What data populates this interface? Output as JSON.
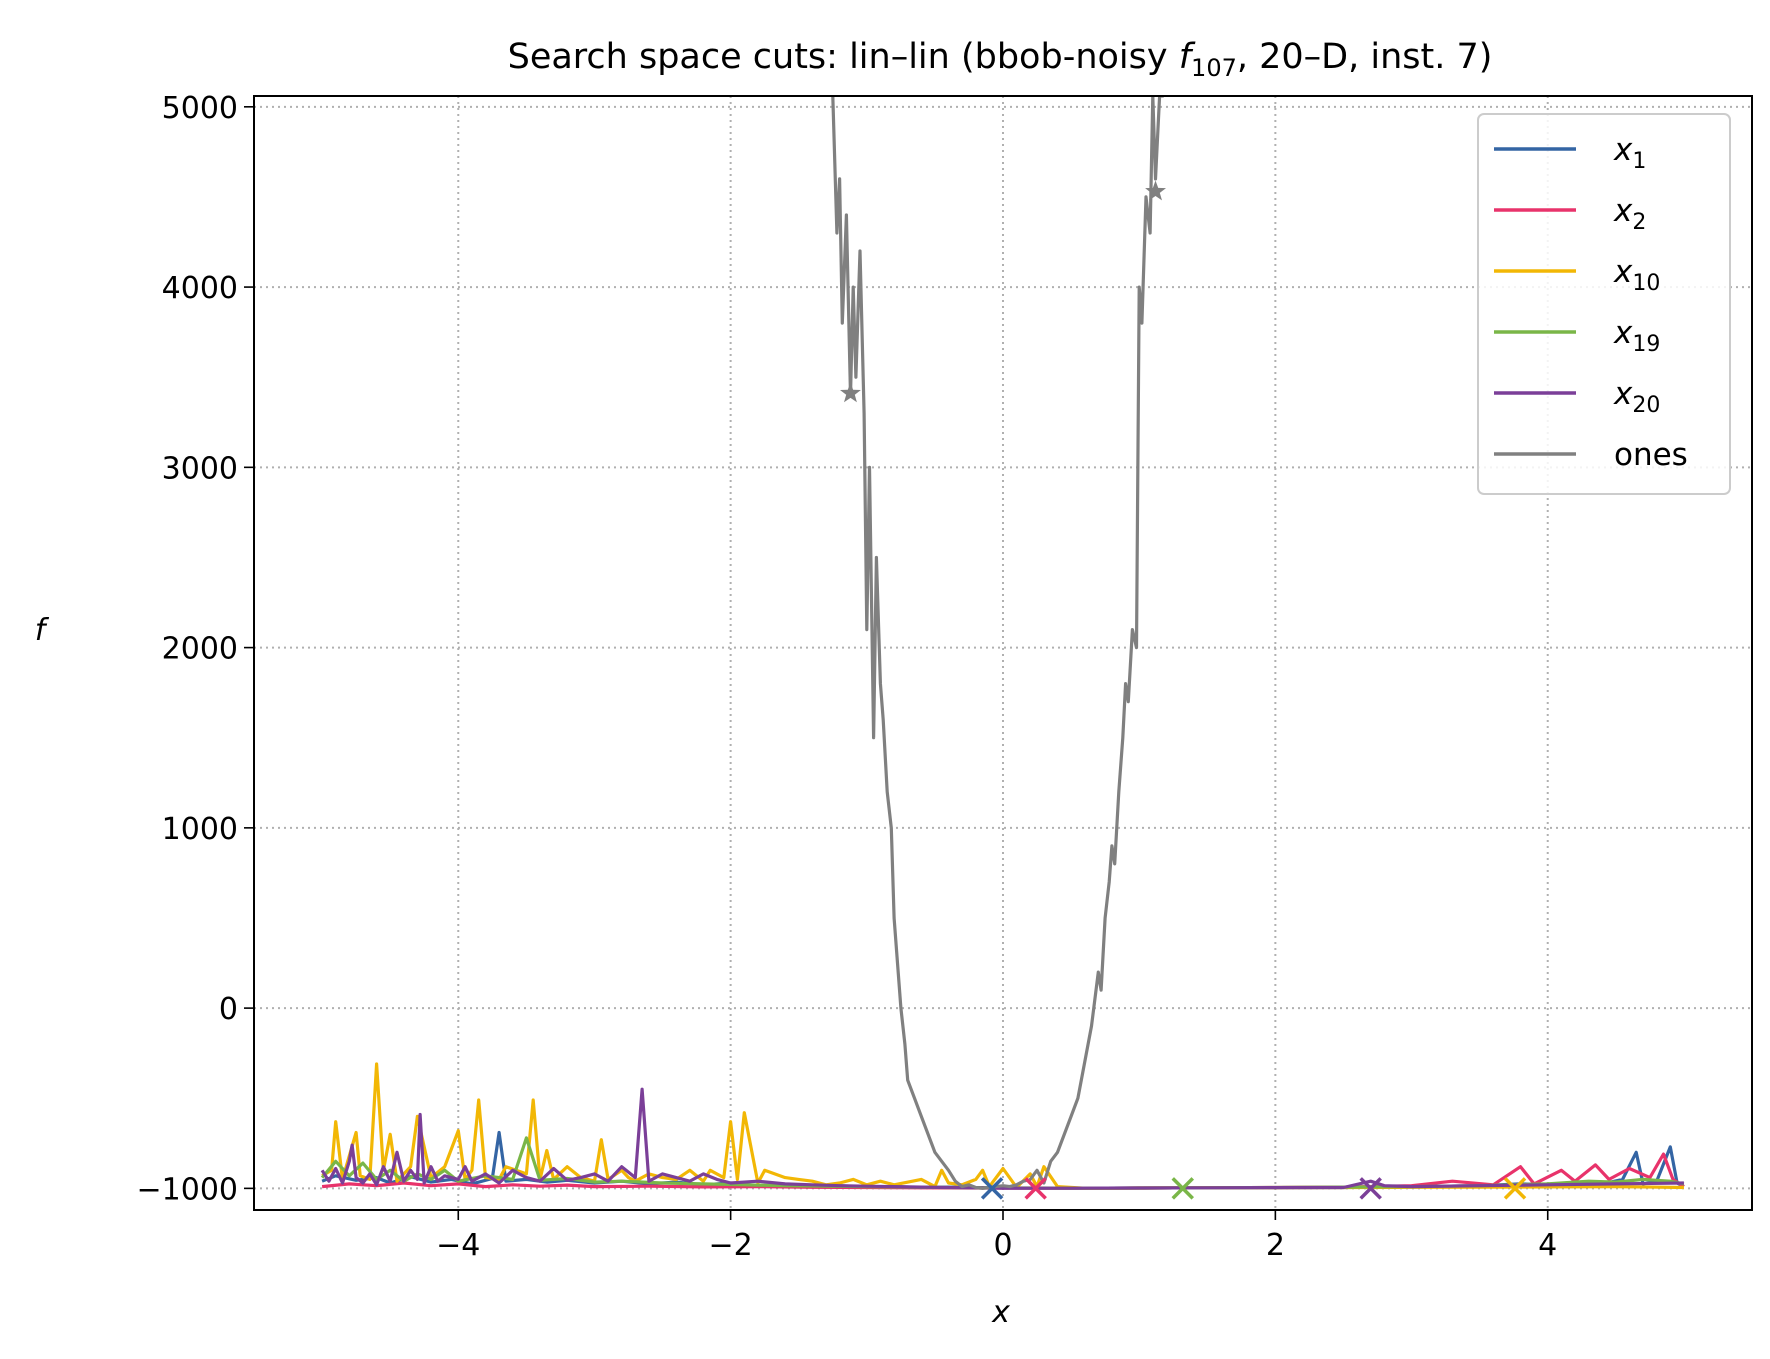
{
  "chart_data": {
    "type": "line",
    "title": {
      "prefix": "Search space cuts: lin–lin (bbob-noisy ",
      "func_symbol": "f",
      "func_sub": "107",
      "suffix": ", 20–D, inst. 7)"
    },
    "xlabel": "x",
    "ylabel": "f",
    "xlim": [
      -5.5,
      5.5
    ],
    "ylim": [
      -1120,
      5060
    ],
    "xticks": [
      {
        "value": -4,
        "label": "−4"
      },
      {
        "value": -2,
        "label": "−2"
      },
      {
        "value": 0,
        "label": "0"
      },
      {
        "value": 2,
        "label": "2"
      },
      {
        "value": 4,
        "label": "4"
      }
    ],
    "yticks": [
      {
        "value": -1000,
        "label": "−1000"
      },
      {
        "value": 0,
        "label": "0"
      },
      {
        "value": 1000,
        "label": "1000"
      },
      {
        "value": 2000,
        "label": "2000"
      },
      {
        "value": 3000,
        "label": "3000"
      },
      {
        "value": 4000,
        "label": "4000"
      },
      {
        "value": 5000,
        "label": "5000"
      }
    ],
    "grid": true,
    "legend_position": "top-right",
    "series": [
      {
        "name": "x",
        "sub": "1",
        "color": "#3465a4",
        "x": [
          -5.0,
          -4.9,
          -4.75,
          -4.6,
          -4.5,
          -4.35,
          -4.2,
          -4.05,
          -3.9,
          -3.75,
          -3.7,
          -3.65,
          -3.5,
          -3.35,
          -3.2,
          -3.0,
          -2.8,
          -2.6,
          -2.4,
          -2.2,
          -2.0,
          -1.8,
          -1.6,
          -1.4,
          -1.2,
          -1.0,
          -0.8,
          -0.6,
          -0.4,
          -0.2,
          0.0,
          0.5,
          1.0,
          1.5,
          2.0,
          2.5,
          3.0,
          3.5,
          3.8,
          4.0,
          4.2,
          4.4,
          4.55,
          4.65,
          4.7,
          4.8,
          4.9,
          4.95,
          5.0
        ],
        "y": [
          -960,
          -930,
          -955,
          -940,
          -970,
          -935,
          -965,
          -950,
          -975,
          -945,
          -690,
          -960,
          -950,
          -965,
          -955,
          -970,
          -960,
          -975,
          -965,
          -980,
          -970,
          -985,
          -980,
          -990,
          -985,
          -992,
          -990,
          -995,
          -993,
          -996,
          -998,
          -999,
          -998,
          -997,
          -996,
          -995,
          -990,
          -985,
          -975,
          -980,
          -965,
          -975,
          -950,
          -800,
          -975,
          -960,
          -770,
          -970,
          -990
        ]
      },
      {
        "name": "x",
        "sub": "2",
        "color": "#e8336b",
        "x": [
          -5.0,
          -4.8,
          -4.6,
          -4.4,
          -4.2,
          -4.0,
          -3.8,
          -3.6,
          -3.4,
          -3.2,
          -3.0,
          -2.6,
          -2.2,
          -1.8,
          -1.4,
          -1.0,
          -0.6,
          -0.2,
          0.2,
          0.6,
          1.0,
          1.5,
          2.0,
          2.5,
          3.0,
          3.3,
          3.6,
          3.8,
          3.9,
          4.1,
          4.2,
          4.35,
          4.45,
          4.6,
          4.75,
          4.85,
          4.92,
          5.0
        ],
        "y": [
          -990,
          -975,
          -985,
          -970,
          -985,
          -975,
          -990,
          -980,
          -988,
          -982,
          -990,
          -988,
          -992,
          -990,
          -994,
          -995,
          -997,
          -998,
          -999,
          -999,
          -998,
          -997,
          -995,
          -993,
          -985,
          -960,
          -980,
          -880,
          -975,
          -900,
          -960,
          -870,
          -950,
          -890,
          -940,
          -810,
          -950,
          -990
        ]
      },
      {
        "name": "x",
        "sub": "10",
        "color": "#f2b705",
        "x": [
          -5.0,
          -4.93,
          -4.9,
          -4.85,
          -4.75,
          -4.72,
          -4.65,
          -4.6,
          -4.55,
          -4.5,
          -4.45,
          -4.35,
          -4.3,
          -4.2,
          -4.1,
          -4.0,
          -3.95,
          -3.9,
          -3.85,
          -3.8,
          -3.7,
          -3.65,
          -3.5,
          -3.45,
          -3.4,
          -3.35,
          -3.3,
          -3.2,
          -3.1,
          -3.0,
          -2.95,
          -2.9,
          -2.8,
          -2.75,
          -2.7,
          -2.6,
          -2.5,
          -2.4,
          -2.3,
          -2.2,
          -2.15,
          -2.05,
          -2.0,
          -1.95,
          -1.9,
          -1.8,
          -1.75,
          -1.6,
          -1.5,
          -1.4,
          -1.3,
          -1.2,
          -1.1,
          -1.0,
          -0.9,
          -0.8,
          -0.6,
          -0.5,
          -0.45,
          -0.4,
          -0.3,
          -0.2,
          -0.15,
          -0.1,
          0.0,
          0.1,
          0.2,
          0.25,
          0.3,
          0.4,
          0.6,
          0.8,
          1.0,
          1.5,
          2.0,
          2.5,
          3.0,
          3.5,
          4.0,
          4.5,
          5.0
        ],
        "y": [
          -930,
          -900,
          -630,
          -950,
          -690,
          -930,
          -950,
          -310,
          -900,
          -700,
          -960,
          -880,
          -600,
          -940,
          -880,
          -680,
          -950,
          -900,
          -510,
          -940,
          -950,
          -880,
          -920,
          -510,
          -950,
          -790,
          -950,
          -880,
          -940,
          -960,
          -730,
          -950,
          -900,
          -940,
          -960,
          -920,
          -940,
          -950,
          -900,
          -960,
          -900,
          -940,
          -630,
          -950,
          -580,
          -970,
          -900,
          -940,
          -950,
          -960,
          -980,
          -970,
          -950,
          -980,
          -960,
          -980,
          -950,
          -990,
          -900,
          -970,
          -980,
          -950,
          -900,
          -990,
          -890,
          -995,
          -920,
          -990,
          -880,
          -990,
          -999,
          -999,
          -998,
          -997,
          -996,
          -995,
          -994,
          -993,
          -992,
          -990,
          -995
        ]
      },
      {
        "name": "x",
        "sub": "19",
        "color": "#7ab648",
        "x": [
          -5.0,
          -4.9,
          -4.8,
          -4.7,
          -4.6,
          -4.5,
          -4.4,
          -4.3,
          -4.2,
          -4.1,
          -4.0,
          -3.8,
          -3.6,
          -3.5,
          -3.4,
          -3.2,
          -3.0,
          -2.8,
          -2.5,
          -2.2,
          -1.9,
          -1.6,
          -1.3,
          -1.0,
          -0.7,
          -0.4,
          -0.1,
          0.2,
          0.6,
          1.0,
          1.5,
          2.0,
          2.5,
          3.0,
          3.5,
          4.0,
          4.3,
          4.5,
          4.7,
          4.9,
          5.0
        ],
        "y": [
          -940,
          -850,
          -930,
          -860,
          -950,
          -900,
          -960,
          -920,
          -950,
          -900,
          -960,
          -930,
          -950,
          -720,
          -955,
          -945,
          -965,
          -960,
          -970,
          -975,
          -980,
          -985,
          -988,
          -990,
          -993,
          -995,
          -997,
          -998,
          -999,
          -998,
          -997,
          -995,
          -993,
          -990,
          -985,
          -975,
          -960,
          -965,
          -950,
          -960,
          -975
        ]
      },
      {
        "name": "x",
        "sub": "20",
        "color": "#7b3f98",
        "x": [
          -5.0,
          -4.95,
          -4.9,
          -4.85,
          -4.8,
          -4.78,
          -4.75,
          -4.7,
          -4.65,
          -4.6,
          -4.55,
          -4.5,
          -4.45,
          -4.4,
          -4.35,
          -4.3,
          -4.28,
          -4.25,
          -4.2,
          -4.15,
          -4.1,
          -4.0,
          -3.95,
          -3.9,
          -3.8,
          -3.7,
          -3.6,
          -3.5,
          -3.4,
          -3.3,
          -3.2,
          -3.1,
          -3.0,
          -2.9,
          -2.8,
          -2.7,
          -2.65,
          -2.6,
          -2.5,
          -2.4,
          -2.3,
          -2.2,
          -2.1,
          -2.0,
          -1.8,
          -1.6,
          -1.4,
          -1.2,
          -1.0,
          -0.8,
          -0.6,
          -0.4,
          -0.2,
          0.0,
          0.5,
          1.0,
          1.5,
          2.0,
          2.5,
          2.7,
          2.8,
          3.0,
          3.5,
          4.0,
          4.5,
          5.0
        ],
        "y": [
          -900,
          -960,
          -890,
          -970,
          -850,
          -760,
          -940,
          -970,
          -920,
          -980,
          -880,
          -960,
          -800,
          -960,
          -900,
          -950,
          -590,
          -970,
          -880,
          -960,
          -930,
          -950,
          -880,
          -960,
          -920,
          -970,
          -900,
          -940,
          -960,
          -890,
          -955,
          -940,
          -920,
          -960,
          -880,
          -940,
          -450,
          -960,
          -920,
          -940,
          -960,
          -920,
          -950,
          -970,
          -960,
          -975,
          -980,
          -985,
          -988,
          -990,
          -993,
          -995,
          -997,
          -999,
          -999,
          -998,
          -997,
          -996,
          -995,
          -960,
          -985,
          -990,
          -985,
          -980,
          -975,
          -970
        ]
      },
      {
        "name": "ones",
        "sub": "",
        "color": "#808080",
        "x": [
          -1.25,
          -1.22,
          -1.2,
          -1.18,
          -1.15,
          -1.12,
          -1.1,
          -1.08,
          -1.05,
          -1.02,
          -1.0,
          -0.98,
          -0.95,
          -0.93,
          -0.9,
          -0.88,
          -0.85,
          -0.82,
          -0.8,
          -0.75,
          -0.72,
          -0.7,
          -0.65,
          -0.6,
          -0.55,
          -0.5,
          -0.45,
          -0.4,
          -0.35,
          -0.3,
          -0.25,
          -0.2,
          -0.15,
          -0.1,
          -0.05,
          0.0,
          0.05,
          0.1,
          0.15,
          0.2,
          0.25,
          0.3,
          0.35,
          0.4,
          0.45,
          0.5,
          0.55,
          0.6,
          0.65,
          0.7,
          0.72,
          0.75,
          0.78,
          0.8,
          0.82,
          0.85,
          0.88,
          0.9,
          0.92,
          0.95,
          0.98,
          1.0,
          1.02,
          1.05,
          1.08,
          1.1,
          1.12,
          1.15,
          1.18
        ],
        "y": [
          5060,
          4300,
          4600,
          3800,
          4400,
          3400,
          4000,
          3500,
          4200,
          3300,
          2100,
          3000,
          1500,
          2500,
          1800,
          1600,
          1200,
          1000,
          500,
          0,
          -200,
          -400,
          -500,
          -600,
          -700,
          -800,
          -850,
          -900,
          -960,
          -990,
          -980,
          -995,
          -1000,
          -995,
          -990,
          -985,
          -990,
          -980,
          -960,
          -950,
          -900,
          -970,
          -850,
          -800,
          -700,
          -600,
          -500,
          -300,
          -100,
          200,
          100,
          500,
          700,
          900,
          800,
          1200,
          1500,
          1800,
          1700,
          2100,
          2000,
          4000,
          3800,
          4500,
          4300,
          5060,
          4600,
          5060,
          5060
        ]
      }
    ],
    "markers": [
      {
        "type": "x",
        "x": -0.08,
        "y": -1000,
        "color": "#3465a4"
      },
      {
        "type": "x",
        "x": 0.24,
        "y": -1000,
        "color": "#e8336b"
      },
      {
        "type": "x",
        "x": 1.32,
        "y": -1000,
        "color": "#7ab648"
      },
      {
        "type": "x",
        "x": 2.7,
        "y": -1000,
        "color": "#7b3f98"
      },
      {
        "type": "x",
        "x": 3.76,
        "y": -1000,
        "color": "#f2b705"
      },
      {
        "type": "star",
        "x": -1.12,
        "y": 3410,
        "color": "#808080"
      },
      {
        "type": "star",
        "x": 1.12,
        "y": 4530,
        "color": "#808080"
      }
    ]
  }
}
